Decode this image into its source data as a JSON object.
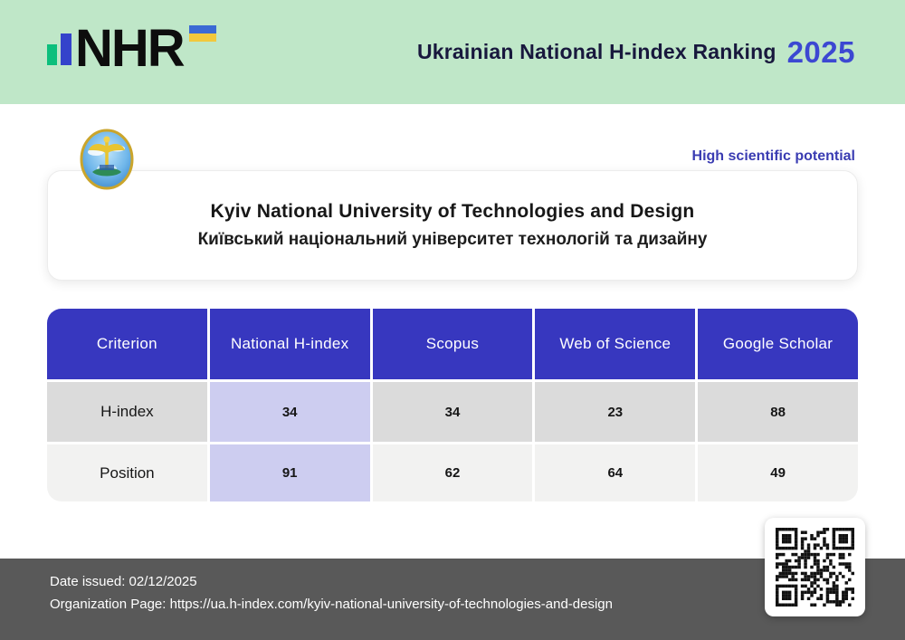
{
  "banner": {
    "logo_text": "NHR",
    "title": "Ukrainian National H-index Ranking",
    "year": "2025"
  },
  "status_badge": "High scientific potential",
  "university": {
    "name_en": "Kyiv National University of Technologies and Design",
    "name_uk": "Київський національний університет технологій та дизайну"
  },
  "table": {
    "columns": [
      "Criterion",
      "National H-index",
      "Scopus",
      "Web of Science",
      "Google Scholar"
    ],
    "rows": [
      {
        "label": "H-index",
        "values": [
          "34",
          "34",
          "23",
          "88"
        ]
      },
      {
        "label": "Position",
        "values": [
          "91",
          "62",
          "64",
          "49"
        ]
      }
    ]
  },
  "footer": {
    "date_issued": "Date issued: 02/12/2025",
    "organization_page": "Organization Page: https://ua.h-index.com/kyiv-national-university-of-technologies-and-design"
  },
  "colors": {
    "banner_bg": "#bfe7c8",
    "table_header": "#3737bf",
    "highlight_column": "#cdcdf0",
    "row_gray": "#dbdbdb",
    "row_light": "#f2f2f1",
    "footer_bg": "#595959",
    "year_blue": "#3c48d2",
    "badge_blue": "#3a3cb2",
    "logo_bar_green": "#0cbf7c",
    "logo_bar_blue": "#3443cb",
    "flag_blue": "#3b6ad4",
    "flag_yellow": "#f2c83c"
  }
}
